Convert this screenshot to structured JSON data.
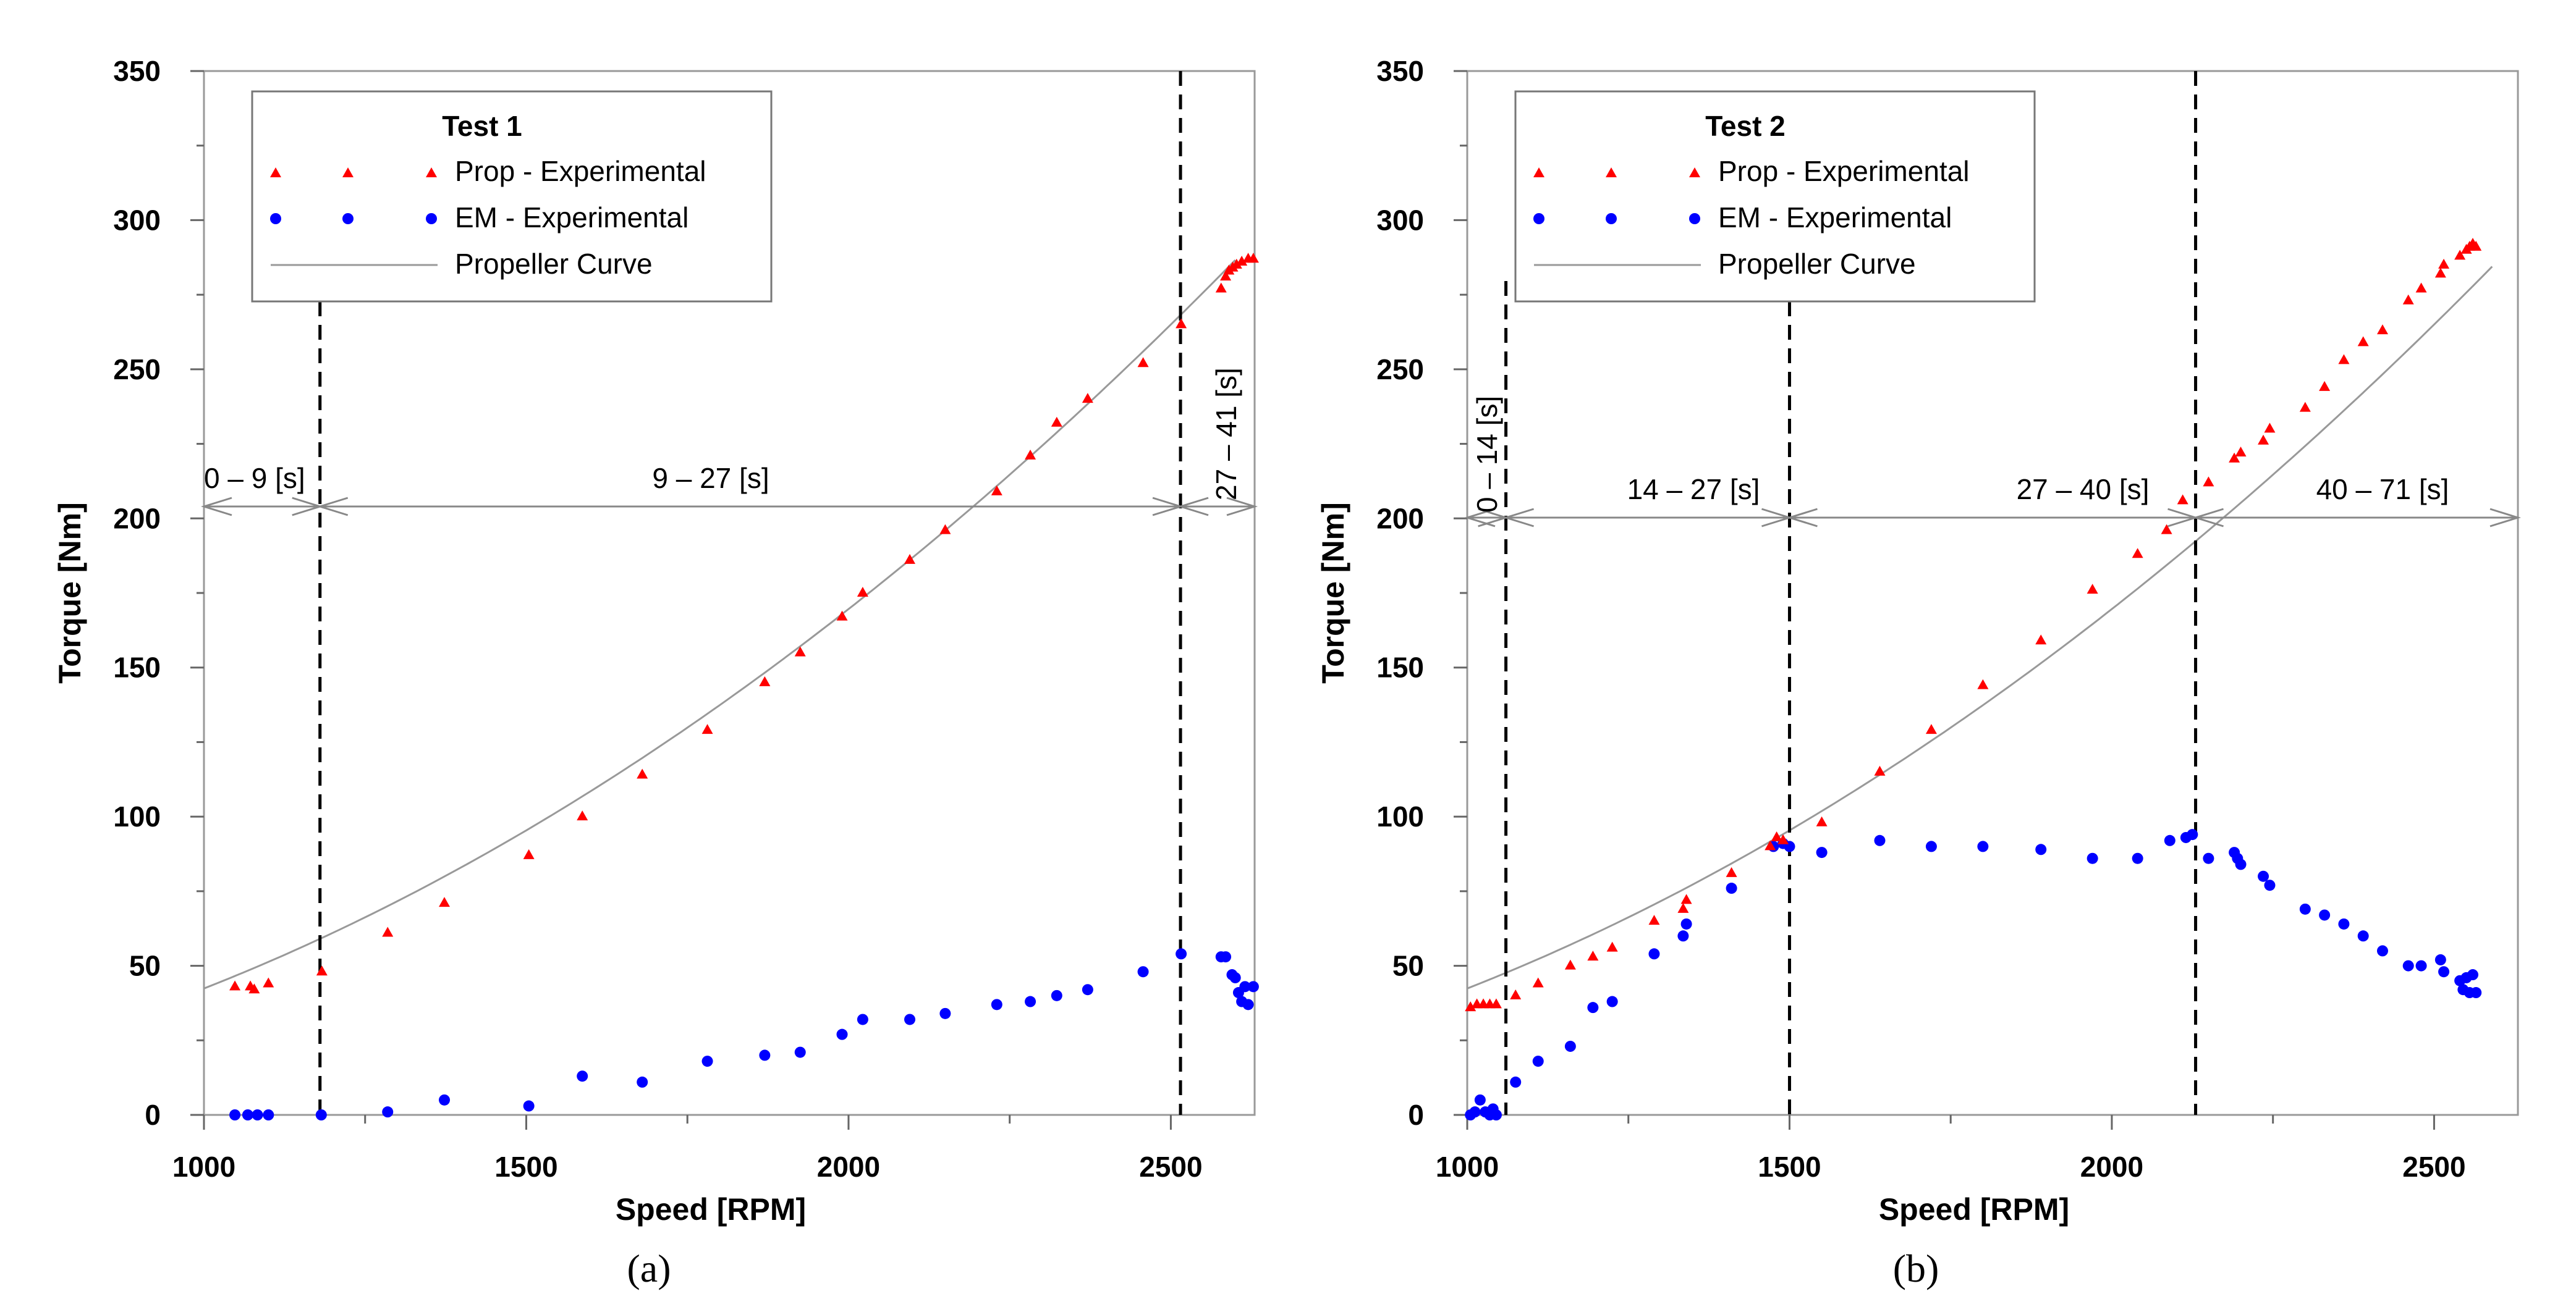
{
  "chart_data": [
    {
      "type": "scatter",
      "legend_title": "Test 1",
      "caption": "(a)",
      "xlabel": "Speed [RPM]",
      "ylabel": "Torque [Nm]",
      "xlim": [
        1000,
        2630
      ],
      "ylim": [
        0,
        350
      ],
      "xticks": [
        1000,
        1500,
        2000,
        2500
      ],
      "yticks": [
        0,
        50,
        100,
        150,
        200,
        250,
        300,
        350
      ],
      "legend": [
        "Prop - Experimental",
        "EM - Experimental",
        "Propeller Curve"
      ],
      "colors": {
        "prop": "#ff0000",
        "em": "#0000ff",
        "curve": "#999999"
      },
      "series": [
        {
          "name": "Prop - Experimental",
          "marker": "triangle",
          "points": [
            [
              1048,
              43
            ],
            [
              1072,
              43
            ],
            [
              1078,
              42
            ],
            [
              1100,
              44
            ],
            [
              1183,
              48
            ],
            [
              1285,
              61
            ],
            [
              1373,
              71
            ],
            [
              1504,
              87
            ],
            [
              1587,
              100
            ],
            [
              1680,
              114
            ],
            [
              1781,
              129
            ],
            [
              1870,
              145
            ],
            [
              1925,
              155
            ],
            [
              1990,
              167
            ],
            [
              2022,
              175
            ],
            [
              2095,
              186
            ],
            [
              2150,
              196
            ],
            [
              2230,
              209
            ],
            [
              2282,
              221
            ],
            [
              2323,
              232
            ],
            [
              2371,
              240
            ],
            [
              2457,
              252
            ],
            [
              2516,
              265
            ],
            [
              2578,
              277
            ],
            [
              2585,
              281
            ],
            [
              2590,
              283
            ],
            [
              2596,
              284
            ],
            [
              2602,
              285
            ],
            [
              2610,
              286
            ],
            [
              2620,
              287
            ],
            [
              2628,
              287
            ]
          ]
        },
        {
          "name": "EM - Experimental",
          "marker": "circle",
          "points": [
            [
              1048,
              0
            ],
            [
              1068,
              0
            ],
            [
              1083,
              0
            ],
            [
              1100,
              0
            ],
            [
              1182,
              0
            ],
            [
              1285,
              1
            ],
            [
              1373,
              5
            ],
            [
              1504,
              3
            ],
            [
              1587,
              13
            ],
            [
              1680,
              11
            ],
            [
              1781,
              18
            ],
            [
              1870,
              20
            ],
            [
              1925,
              21
            ],
            [
              1990,
              27
            ],
            [
              2022,
              32
            ],
            [
              2095,
              32
            ],
            [
              2150,
              34
            ],
            [
              2230,
              37
            ],
            [
              2282,
              38
            ],
            [
              2323,
              40
            ],
            [
              2371,
              42
            ],
            [
              2457,
              48
            ],
            [
              2516,
              54
            ],
            [
              2578,
              53
            ],
            [
              2585,
              53
            ],
            [
              2595,
              47
            ],
            [
              2600,
              46
            ],
            [
              2605,
              41
            ],
            [
              2610,
              38
            ],
            [
              2615,
              43
            ],
            [
              2620,
              37
            ],
            [
              2628,
              43
            ]
          ]
        },
        {
          "name": "Propeller Curve",
          "marker": "line",
          "coefficient": 4.24e-05,
          "exponent": 2,
          "x_range": [
            1000,
            2600
          ]
        }
      ],
      "boundaries": [
        1180,
        2515
      ],
      "intervals": [
        "0 – 9 [s]",
        "9 – 27 [s]",
        "27 – 41 [s]"
      ]
    },
    {
      "type": "scatter",
      "legend_title": "Test 2",
      "caption": "(b)",
      "xlabel": "Speed [RPM]",
      "ylabel": "Torque [Nm]",
      "xlim": [
        1000,
        2630
      ],
      "ylim": [
        0,
        350
      ],
      "xticks": [
        1000,
        1500,
        2000,
        2500
      ],
      "yticks": [
        0,
        50,
        100,
        150,
        200,
        250,
        300,
        350
      ],
      "legend": [
        "Prop - Experimental",
        "EM - Experimental",
        "Propeller Curve"
      ],
      "colors": {
        "prop": "#ff0000",
        "em": "#0000ff",
        "curve": "#999999"
      },
      "series": [
        {
          "name": "Prop - Experimental",
          "marker": "triangle",
          "points": [
            [
              1005,
              36
            ],
            [
              1015,
              37
            ],
            [
              1025,
              37
            ],
            [
              1035,
              37
            ],
            [
              1045,
              37
            ],
            [
              1075,
              40
            ],
            [
              1110,
              44
            ],
            [
              1160,
              50
            ],
            [
              1195,
              53
            ],
            [
              1225,
              56
            ],
            [
              1290,
              65
            ],
            [
              1335,
              69
            ],
            [
              1340,
              72
            ],
            [
              1410,
              81
            ],
            [
              1470,
              90
            ],
            [
              1480,
              93
            ],
            [
              1490,
              92
            ],
            [
              1550,
              98
            ],
            [
              1640,
              115
            ],
            [
              1720,
              129
            ],
            [
              1800,
              144
            ],
            [
              1890,
              159
            ],
            [
              1970,
              176
            ],
            [
              2040,
              188
            ],
            [
              2085,
              196
            ],
            [
              2110,
              206
            ],
            [
              2150,
              212
            ],
            [
              2190,
              220
            ],
            [
              2200,
              222
            ],
            [
              2235,
              226
            ],
            [
              2245,
              230
            ],
            [
              2300,
              237
            ],
            [
              2330,
              244
            ],
            [
              2360,
              253
            ],
            [
              2390,
              259
            ],
            [
              2420,
              263
            ],
            [
              2460,
              273
            ],
            [
              2480,
              277
            ],
            [
              2510,
              282
            ],
            [
              2515,
              285
            ],
            [
              2540,
              288
            ],
            [
              2550,
              290
            ],
            [
              2555,
              291
            ],
            [
              2560,
              292
            ],
            [
              2565,
              291
            ]
          ]
        },
        {
          "name": "EM - Experimental",
          "marker": "circle",
          "points": [
            [
              1005,
              0
            ],
            [
              1012,
              1
            ],
            [
              1020,
              5
            ],
            [
              1028,
              1
            ],
            [
              1035,
              0
            ],
            [
              1040,
              2
            ],
            [
              1045,
              0
            ],
            [
              1075,
              11
            ],
            [
              1110,
              18
            ],
            [
              1160,
              23
            ],
            [
              1195,
              36
            ],
            [
              1225,
              38
            ],
            [
              1290,
              54
            ],
            [
              1335,
              60
            ],
            [
              1340,
              64
            ],
            [
              1410,
              76
            ],
            [
              1475,
              90
            ],
            [
              1490,
              91
            ],
            [
              1500,
              90
            ],
            [
              1550,
              88
            ],
            [
              1640,
              92
            ],
            [
              1720,
              90
            ],
            [
              1800,
              90
            ],
            [
              1890,
              89
            ],
            [
              1970,
              86
            ],
            [
              2040,
              86
            ],
            [
              2090,
              92
            ],
            [
              2115,
              93
            ],
            [
              2125,
              94
            ],
            [
              2150,
              86
            ],
            [
              2190,
              88
            ],
            [
              2195,
              86
            ],
            [
              2200,
              84
            ],
            [
              2235,
              80
            ],
            [
              2245,
              77
            ],
            [
              2300,
              69
            ],
            [
              2330,
              67
            ],
            [
              2360,
              64
            ],
            [
              2390,
              60
            ],
            [
              2420,
              55
            ],
            [
              2460,
              50
            ],
            [
              2480,
              50
            ],
            [
              2510,
              52
            ],
            [
              2515,
              48
            ],
            [
              2540,
              45
            ],
            [
              2545,
              42
            ],
            [
              2550,
              46
            ],
            [
              2555,
              41
            ],
            [
              2560,
              47
            ],
            [
              2565,
              41
            ]
          ]
        },
        {
          "name": "Propeller Curve",
          "marker": "line",
          "coefficient": 4.24e-05,
          "exponent": 2,
          "x_range": [
            1000,
            2590
          ]
        }
      ],
      "boundaries": [
        1060,
        1500,
        2130
      ],
      "intervals": [
        "0 – 14 [s]",
        "14 – 27 [s]",
        "27 – 40 [s]",
        "40 – 71 [s]"
      ]
    }
  ]
}
